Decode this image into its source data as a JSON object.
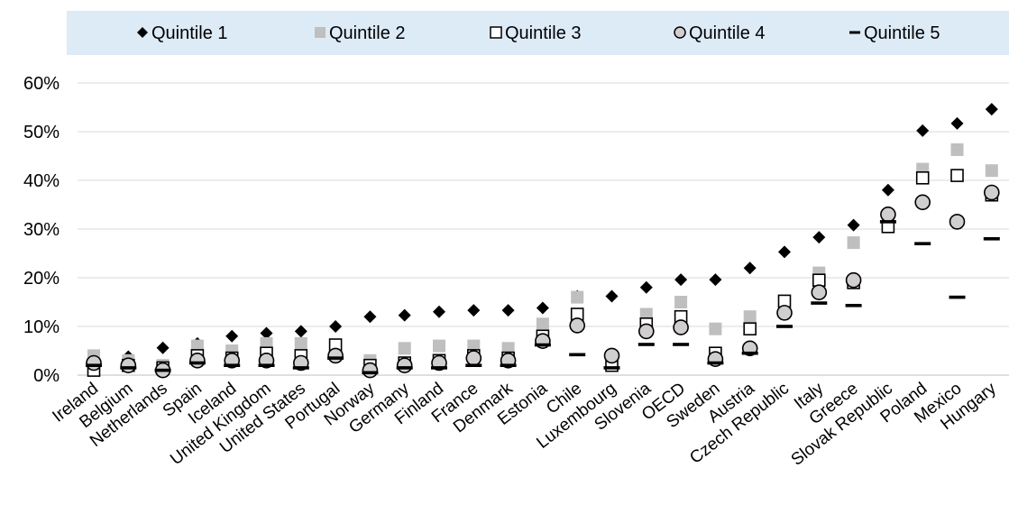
{
  "chart_data": {
    "type": "scatter",
    "title": "",
    "xlabel": "",
    "ylabel": "",
    "ylim": [
      0,
      60
    ],
    "yticks": [
      0,
      10,
      20,
      30,
      40,
      50,
      60
    ],
    "ytick_labels": [
      "0%",
      "10%",
      "20%",
      "30%",
      "40%",
      "50%",
      "60%"
    ],
    "grid": "horizontal",
    "legend_position": "top",
    "legend_background": "#ddebf7",
    "categories": [
      "Ireland",
      "Belgium",
      "Netherlands",
      "Spain",
      "Iceland",
      "United Kingdom",
      "United States",
      "Portugal",
      "Norway",
      "Germany",
      "Finland",
      "France",
      "Denmark",
      "Estonia",
      "Chile",
      "Luxembourg",
      "Slovenia",
      "OECD",
      "Sweden",
      "Austria",
      "Czech Republic",
      "Italy",
      "Greece",
      "Slovak Republic",
      "Poland",
      "Mexico",
      "Hungary"
    ],
    "series": [
      {
        "name": "Quintile 1",
        "marker": "diamond",
        "color": "#000000",
        "values": [
          3.0,
          3.8,
          5.6,
          6.5,
          8.0,
          8.6,
          9.0,
          10.0,
          12.0,
          12.3,
          13.0,
          13.3,
          13.3,
          13.8,
          16.2,
          16.2,
          18.0,
          19.6,
          19.6,
          22.0,
          25.3,
          28.3,
          30.8,
          38.0,
          50.2,
          51.7,
          54.6
        ]
      },
      {
        "name": "Quintile 2",
        "marker": "square-filled",
        "color": "#bfbfbf",
        "values": [
          4.0,
          3.0,
          2.0,
          6.0,
          5.0,
          6.5,
          6.5,
          6.2,
          3.0,
          5.5,
          6.0,
          6.0,
          5.5,
          10.5,
          16.0,
          3.0,
          12.5,
          15.0,
          9.5,
          12.0,
          15.2,
          21.0,
          27.2,
          32.0,
          42.3,
          46.3,
          42.0
        ]
      },
      {
        "name": "Quintile 3",
        "marker": "square-open",
        "color": "#000000",
        "values": [
          1.0,
          2.0,
          1.5,
          4.0,
          3.5,
          4.5,
          4.0,
          6.2,
          2.0,
          2.5,
          3.0,
          4.0,
          3.5,
          8.0,
          12.5,
          2.0,
          10.5,
          12.0,
          4.5,
          9.5,
          15.2,
          19.5,
          19.0,
          30.5,
          40.5,
          41.0,
          37.0
        ]
      },
      {
        "name": "Quintile 4",
        "marker": "circle",
        "color": "#d0cece",
        "values": [
          2.5,
          2.0,
          1.0,
          3.0,
          3.0,
          3.0,
          2.5,
          4.0,
          1.0,
          2.0,
          2.5,
          3.5,
          3.0,
          7.0,
          10.2,
          4.0,
          9.0,
          9.8,
          3.3,
          5.5,
          12.8,
          17.0,
          19.5,
          33.0,
          35.5,
          31.5,
          37.5
        ]
      },
      {
        "name": "Quintile 5",
        "marker": "dash",
        "color": "#000000",
        "values": [
          2.0,
          1.5,
          1.0,
          2.5,
          2.0,
          2.0,
          1.5,
          3.5,
          0.5,
          1.5,
          1.5,
          2.0,
          2.0,
          6.2,
          4.2,
          1.5,
          6.3,
          6.3,
          2.5,
          4.5,
          10.0,
          14.8,
          14.3,
          31.5,
          27.0,
          16.0,
          28.0
        ]
      }
    ]
  }
}
